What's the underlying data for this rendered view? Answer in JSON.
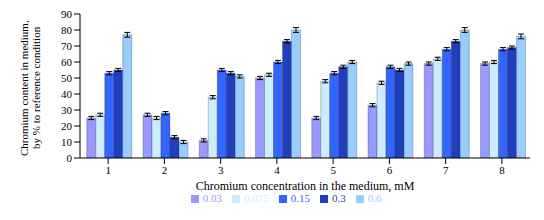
{
  "chart_data": {
    "type": "bar",
    "y_label": "Chromium content in medium, by % to reference condition",
    "x_label": "Chromium concentration in the medium, mM",
    "categories": [
      "1",
      "2",
      "3",
      "4",
      "5",
      "6",
      "7",
      "8"
    ],
    "series": [
      {
        "name": "0.03",
        "color": "#9999ff",
        "values": [
          25,
          27,
          11,
          50,
          25,
          33,
          59,
          59
        ],
        "errors": [
          1,
          1,
          1,
          1,
          1,
          1,
          1,
          1
        ]
      },
      {
        "name": "0.075",
        "color": "#ccecff",
        "values": [
          27,
          25,
          38,
          52,
          48,
          47,
          62,
          60
        ],
        "errors": [
          1,
          1,
          1,
          1,
          1,
          1,
          1,
          1
        ]
      },
      {
        "name": "0.15",
        "color": "#3366ff",
        "values": [
          53,
          28,
          55,
          60,
          53,
          57,
          68,
          68
        ],
        "errors": [
          1,
          1,
          1,
          1,
          1,
          1,
          1,
          1
        ]
      },
      {
        "name": "0.3",
        "color": "#1f3fbf",
        "values": [
          55,
          13,
          53,
          73,
          57,
          55,
          73,
          69
        ],
        "errors": [
          1,
          1,
          1,
          1,
          1,
          1,
          1,
          1
        ]
      },
      {
        "name": "0.6",
        "color": "#99ccff",
        "values": [
          77,
          10,
          51,
          80,
          60,
          59,
          80,
          76
        ],
        "errors": [
          1.5,
          1,
          1,
          1.5,
          1,
          1,
          1.5,
          1.5
        ]
      }
    ],
    "ylim": [
      0,
      90
    ],
    "yticks": [
      0,
      10,
      20,
      30,
      40,
      50,
      60,
      70,
      80,
      90
    ],
    "grid": false,
    "legend": "bottom"
  }
}
